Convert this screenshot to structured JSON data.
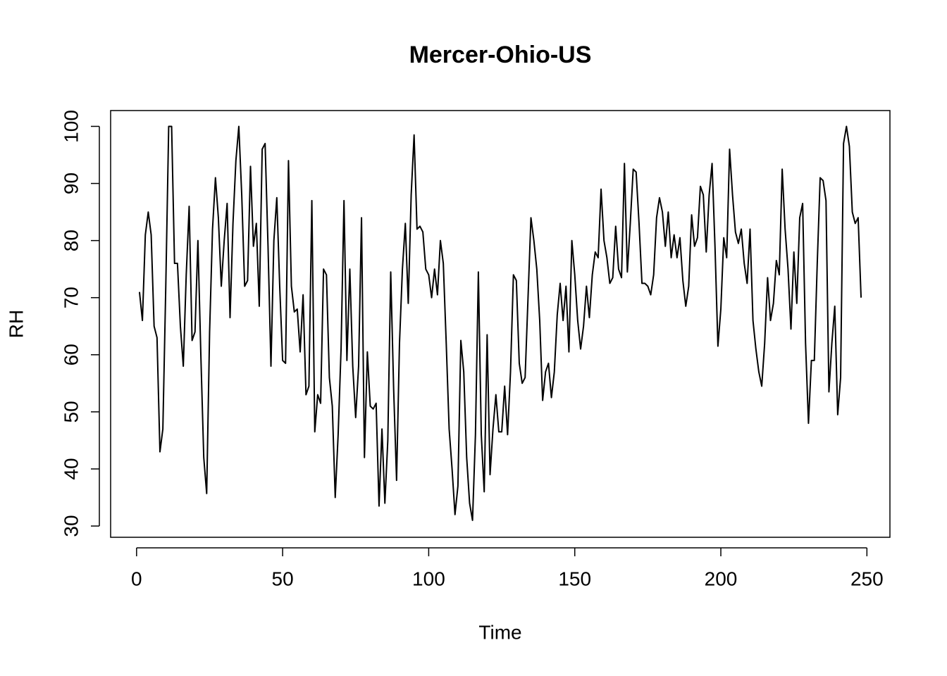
{
  "chart_data": {
    "type": "line",
    "title": "Mercer-Ohio-US",
    "xlabel": "Time",
    "ylabel": "RH",
    "x": [
      1,
      2,
      3,
      4,
      5,
      6,
      7,
      8,
      9,
      10,
      11,
      12,
      13,
      14,
      15,
      16,
      17,
      18,
      19,
      20,
      21,
      22,
      23,
      24,
      25,
      26,
      27,
      28,
      29,
      30,
      31,
      32,
      33,
      34,
      35,
      36,
      37,
      38,
      39,
      40,
      41,
      42,
      43,
      44,
      45,
      46,
      47,
      48,
      49,
      50,
      51,
      52,
      53,
      54,
      55,
      56,
      57,
      58,
      59,
      60,
      61,
      62,
      63,
      64,
      65,
      66,
      67,
      68,
      69,
      70,
      71,
      72,
      73,
      74,
      75,
      76,
      77,
      78,
      79,
      80,
      81,
      82,
      83,
      84,
      85,
      86,
      87,
      88,
      89,
      90,
      91,
      92,
      93,
      94,
      95,
      96,
      97,
      98,
      99,
      100,
      101,
      102,
      103,
      104,
      105,
      106,
      107,
      108,
      109,
      110,
      111,
      112,
      113,
      114,
      115,
      116,
      117,
      118,
      119,
      120,
      121,
      122,
      123,
      124,
      125,
      126,
      127,
      128,
      129,
      130,
      131,
      132,
      133,
      134,
      135,
      136,
      137,
      138,
      139,
      140,
      141,
      142,
      143,
      144,
      145,
      146,
      147,
      148,
      149,
      150,
      151,
      152,
      153,
      154,
      155,
      156,
      157,
      158,
      159,
      160,
      161,
      162,
      163,
      164,
      165,
      166,
      167,
      168,
      169,
      170,
      171,
      172,
      173,
      174,
      175,
      176,
      177,
      178,
      179,
      180,
      181,
      182,
      183,
      184,
      185,
      186,
      187,
      188,
      189,
      190,
      191,
      192,
      193,
      194,
      195,
      196,
      197,
      198,
      199,
      200,
      201,
      202,
      203,
      204,
      205,
      206,
      207,
      208,
      209,
      210,
      211,
      212,
      213,
      214,
      215,
      216,
      217,
      218,
      219,
      220,
      221,
      222,
      223,
      224,
      225,
      226,
      227,
      228,
      229,
      230,
      231,
      232,
      233,
      234,
      235,
      236,
      237,
      238,
      239,
      240,
      241,
      242,
      243,
      244,
      245,
      246,
      247,
      248
    ],
    "series": [
      {
        "name": "RH",
        "color": "#000000",
        "values": [
          71,
          66,
          81,
          85,
          81,
          65,
          63,
          43,
          47,
          72,
          100,
          100,
          76,
          76,
          65,
          58,
          74,
          86,
          62.5,
          64,
          80,
          60,
          42,
          35.7,
          64,
          82,
          91,
          84,
          72,
          80,
          86.5,
          66.5,
          83,
          94,
          100,
          88,
          72,
          73,
          93,
          79,
          83,
          68.5,
          96,
          97,
          79,
          58,
          80,
          87.5,
          72,
          59,
          58.5,
          94,
          72,
          67.5,
          68,
          60.5,
          70.5,
          53,
          54.5,
          87,
          46.5,
          53,
          51.5,
          75,
          74,
          56,
          51,
          35,
          46,
          61,
          87,
          59,
          75,
          58,
          49,
          58,
          84,
          42,
          60.5,
          51,
          50.5,
          51.5,
          33.5,
          47,
          34,
          45,
          74.5,
          54,
          38,
          62,
          75,
          83,
          69,
          88,
          98.5,
          82,
          82.5,
          81.5,
          75,
          74,
          70,
          75,
          70.5,
          80,
          76,
          62,
          47,
          40,
          32,
          37,
          62.5,
          57,
          42,
          34,
          31,
          46,
          74.5,
          46,
          36,
          63.5,
          39,
          47,
          53,
          46.5,
          46.5,
          54.5,
          46,
          57,
          74,
          73,
          58.5,
          55,
          56,
          70,
          84,
          80,
          75,
          66,
          52,
          57,
          58.5,
          52.5,
          57,
          67,
          72.5,
          66,
          72,
          60.5,
          80,
          74,
          66,
          61,
          65,
          72,
          66.5,
          74,
          78,
          77,
          89,
          80,
          77,
          72.5,
          73.5,
          82.5,
          75,
          73.5,
          93.5,
          74.5,
          83,
          92.5,
          92,
          83,
          72.5,
          72.5,
          72,
          70.5,
          74,
          84,
          87.5,
          85,
          79,
          85,
          77,
          81,
          77,
          80.5,
          73,
          68.5,
          72,
          84.5,
          79,
          80.5,
          89.5,
          88,
          78,
          88,
          93.5,
          79,
          61.5,
          68,
          80.5,
          77,
          96,
          88,
          81.5,
          79.5,
          82,
          76,
          72.5,
          82,
          66,
          61,
          57,
          54.5,
          62,
          73.5,
          66,
          69,
          76.5,
          74,
          92.5,
          82,
          75,
          64.5,
          78,
          69,
          84,
          86.5,
          62,
          48,
          59,
          59,
          76,
          91,
          90.5,
          87,
          53.5,
          62,
          68.5,
          49.5,
          56,
          97,
          100,
          96.5,
          85,
          83,
          84,
          70
        ]
      }
    ],
    "xlim": [
      -8.88,
      257.88
    ],
    "xticks": [
      0,
      50,
      100,
      150,
      200,
      250
    ],
    "ylim": [
      28.03,
      102.77
    ],
    "yticks": [
      30,
      40,
      50,
      60,
      70,
      80,
      90,
      100
    ]
  }
}
